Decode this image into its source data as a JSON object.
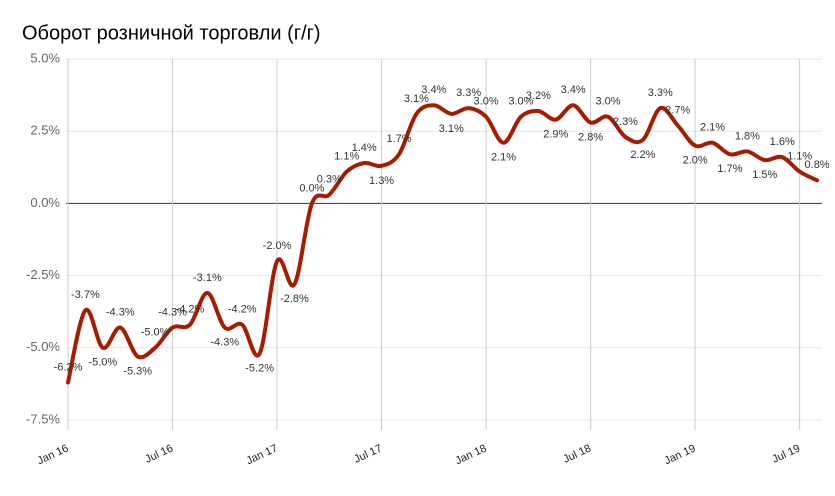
{
  "chart_data": {
    "type": "line",
    "title": "Оборот розничной торговли (г/г)",
    "categories": [
      "Jan 16",
      null,
      null,
      null,
      null,
      null,
      "Jul 16",
      null,
      null,
      null,
      null,
      null,
      "Jan 17",
      null,
      null,
      null,
      null,
      null,
      "Jul 17",
      null,
      null,
      null,
      null,
      null,
      "Jan 18",
      null,
      null,
      null,
      null,
      null,
      "Jul 18",
      null,
      null,
      null,
      null,
      null,
      "Jan 19",
      null,
      null,
      null,
      null,
      null,
      "Jul 19",
      null
    ],
    "values": [
      -6.2,
      -3.7,
      -5.0,
      -4.3,
      -5.3,
      -5.0,
      -4.3,
      -4.2,
      -3.1,
      -4.3,
      -4.2,
      -5.2,
      -2.0,
      -2.8,
      0.0,
      0.3,
      1.1,
      1.4,
      1.3,
      1.7,
      3.1,
      3.4,
      3.1,
      3.3,
      3.0,
      2.1,
      3.0,
      3.2,
      2.9,
      3.4,
      2.8,
      3.0,
      2.3,
      2.2,
      3.3,
      2.7,
      2.0,
      2.1,
      1.7,
      1.8,
      1.5,
      1.6,
      1.1,
      0.8
    ],
    "value_labels": [
      "-6.2%",
      "-3.7%",
      "-5.0%",
      "-4.3%",
      "-5.3%",
      "-5.0%",
      "-4.3%",
      "-4.2%",
      "-3.1%",
      "-4.3%",
      "-4.2%",
      "-5.2%",
      "-2.0%",
      "-2.8%",
      "0.0%",
      "0.3%",
      "1.1%",
      "1.4%",
      "1.3%",
      "1.7%",
      "3.1%",
      "3.4%",
      "3.1%",
      "3.3%",
      "3.0%",
      "2.1%",
      "3.0%",
      "3.2%",
      "2.9%",
      "3.4%",
      "2.8%",
      "3.0%",
      "2.3%",
      "2.2%",
      "3.3%",
      "2.7%",
      "2.0%",
      "2.1%",
      "1.7%",
      "1.8%",
      "1.5%",
      "1.6%",
      "1.1%",
      "0.8%"
    ],
    "color": "#a61c00",
    "ylim": [
      -8.0,
      5.0
    ],
    "yticks": [
      {
        "value": 5,
        "label": "5.0%"
      },
      {
        "value": 2.5,
        "label": "2.5%"
      },
      {
        "value": 0,
        "label": "0.0%"
      },
      {
        "value": -2.5,
        "label": "-2.5%"
      },
      {
        "value": -5,
        "label": "-5.0%"
      },
      {
        "value": -7.5,
        "label": "-7.5%"
      }
    ],
    "grid": true
  }
}
